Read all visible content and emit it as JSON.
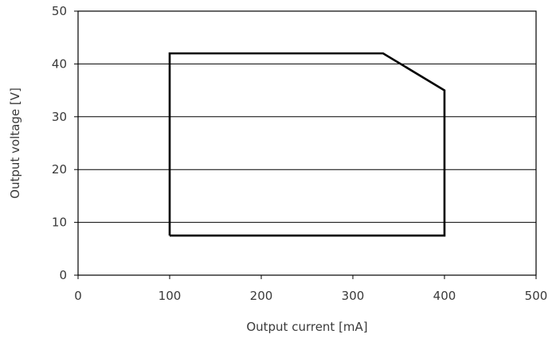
{
  "chart_data": {
    "type": "line",
    "title": "",
    "xlabel": "Output current [mA]",
    "ylabel": "Output voltage [V]",
    "xlim": [
      0,
      500
    ],
    "ylim": [
      0,
      50
    ],
    "x_ticks": [
      0,
      100,
      200,
      300,
      400,
      500
    ],
    "y_ticks": [
      0,
      10,
      20,
      30,
      40,
      50
    ],
    "grid": "horizontal",
    "series": [
      {
        "points": [
          {
            "x": 100,
            "y": 7.5
          },
          {
            "x": 100,
            "y": 42
          },
          {
            "x": 333,
            "y": 42
          },
          {
            "x": 400,
            "y": 35
          },
          {
            "x": 400,
            "y": 7.5
          },
          {
            "x": 100,
            "y": 7.5
          }
        ],
        "color": "#000000"
      }
    ]
  }
}
